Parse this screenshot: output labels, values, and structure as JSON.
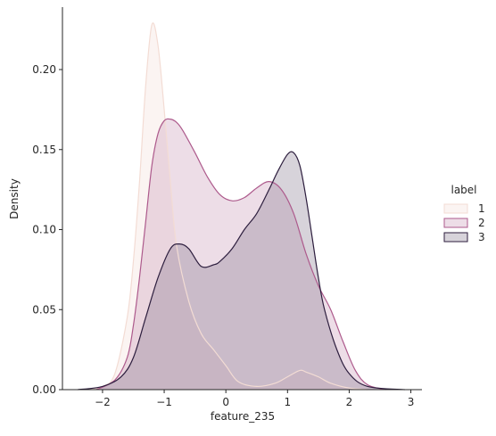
{
  "chart_data": {
    "type": "area",
    "title": "",
    "xlabel": "feature_235",
    "ylabel": "Density",
    "xlim": [
      -2.65,
      3.18
    ],
    "ylim": [
      0,
      0.239
    ],
    "xticks": [
      -2,
      -1,
      0,
      1,
      2,
      3
    ],
    "xtick_labels": [
      "−2",
      "−1",
      "0",
      "1",
      "2",
      "3"
    ],
    "yticks": [
      0,
      0.05,
      0.1,
      0.15,
      0.2
    ],
    "ytick_labels": [
      "0.00",
      "0.05",
      "0.10",
      "0.15",
      "0.20"
    ],
    "grid": false,
    "legend": {
      "title": "label",
      "placement": "right-outside"
    },
    "series": [
      {
        "name": "1",
        "color": "#f3dcd4",
        "fill": "#f3dcd4",
        "x": [
          -2.3,
          -2.0,
          -1.8,
          -1.6,
          -1.5,
          -1.4,
          -1.3,
          -1.2,
          -1.1,
          -1.0,
          -0.9,
          -0.8,
          -0.6,
          -0.4,
          -0.2,
          0.0,
          0.2,
          0.5,
          0.8,
          1.0,
          1.2,
          1.3,
          1.5,
          1.7,
          2.0,
          2.3
        ],
        "y": [
          0.0,
          0.002,
          0.01,
          0.045,
          0.08,
          0.13,
          0.19,
          0.228,
          0.215,
          0.175,
          0.13,
          0.09,
          0.055,
          0.035,
          0.025,
          0.015,
          0.005,
          0.002,
          0.004,
          0.008,
          0.012,
          0.011,
          0.008,
          0.004,
          0.001,
          0.0
        ]
      },
      {
        "name": "2",
        "color": "#ad5a8c",
        "fill": "#c58fb1",
        "x": [
          -2.1,
          -1.8,
          -1.6,
          -1.5,
          -1.4,
          -1.3,
          -1.2,
          -1.1,
          -1.0,
          -0.9,
          -0.8,
          -0.7,
          -0.5,
          -0.3,
          -0.1,
          0.1,
          0.3,
          0.5,
          0.7,
          0.9,
          1.1,
          1.3,
          1.5,
          1.7,
          1.9,
          2.1,
          2.3,
          2.6
        ],
        "y": [
          0.0,
          0.006,
          0.02,
          0.04,
          0.07,
          0.105,
          0.14,
          0.16,
          0.168,
          0.169,
          0.167,
          0.162,
          0.148,
          0.133,
          0.122,
          0.118,
          0.12,
          0.126,
          0.13,
          0.125,
          0.11,
          0.085,
          0.065,
          0.05,
          0.03,
          0.012,
          0.003,
          0.0
        ]
      },
      {
        "name": "3",
        "color": "#2d1e3e",
        "fill": "#7c6e83",
        "x": [
          -2.4,
          -2.0,
          -1.7,
          -1.5,
          -1.3,
          -1.1,
          -0.9,
          -0.75,
          -0.6,
          -0.4,
          -0.2,
          -0.1,
          0.1,
          0.3,
          0.5,
          0.7,
          0.85,
          1.0,
          1.1,
          1.2,
          1.3,
          1.4,
          1.5,
          1.6,
          1.8,
          2.0,
          2.3,
          2.9
        ],
        "y": [
          0.0,
          0.002,
          0.008,
          0.02,
          0.045,
          0.07,
          0.088,
          0.091,
          0.088,
          0.077,
          0.078,
          0.08,
          0.088,
          0.1,
          0.11,
          0.125,
          0.137,
          0.147,
          0.148,
          0.14,
          0.12,
          0.095,
          0.07,
          0.05,
          0.025,
          0.01,
          0.002,
          0.0
        ]
      }
    ]
  }
}
